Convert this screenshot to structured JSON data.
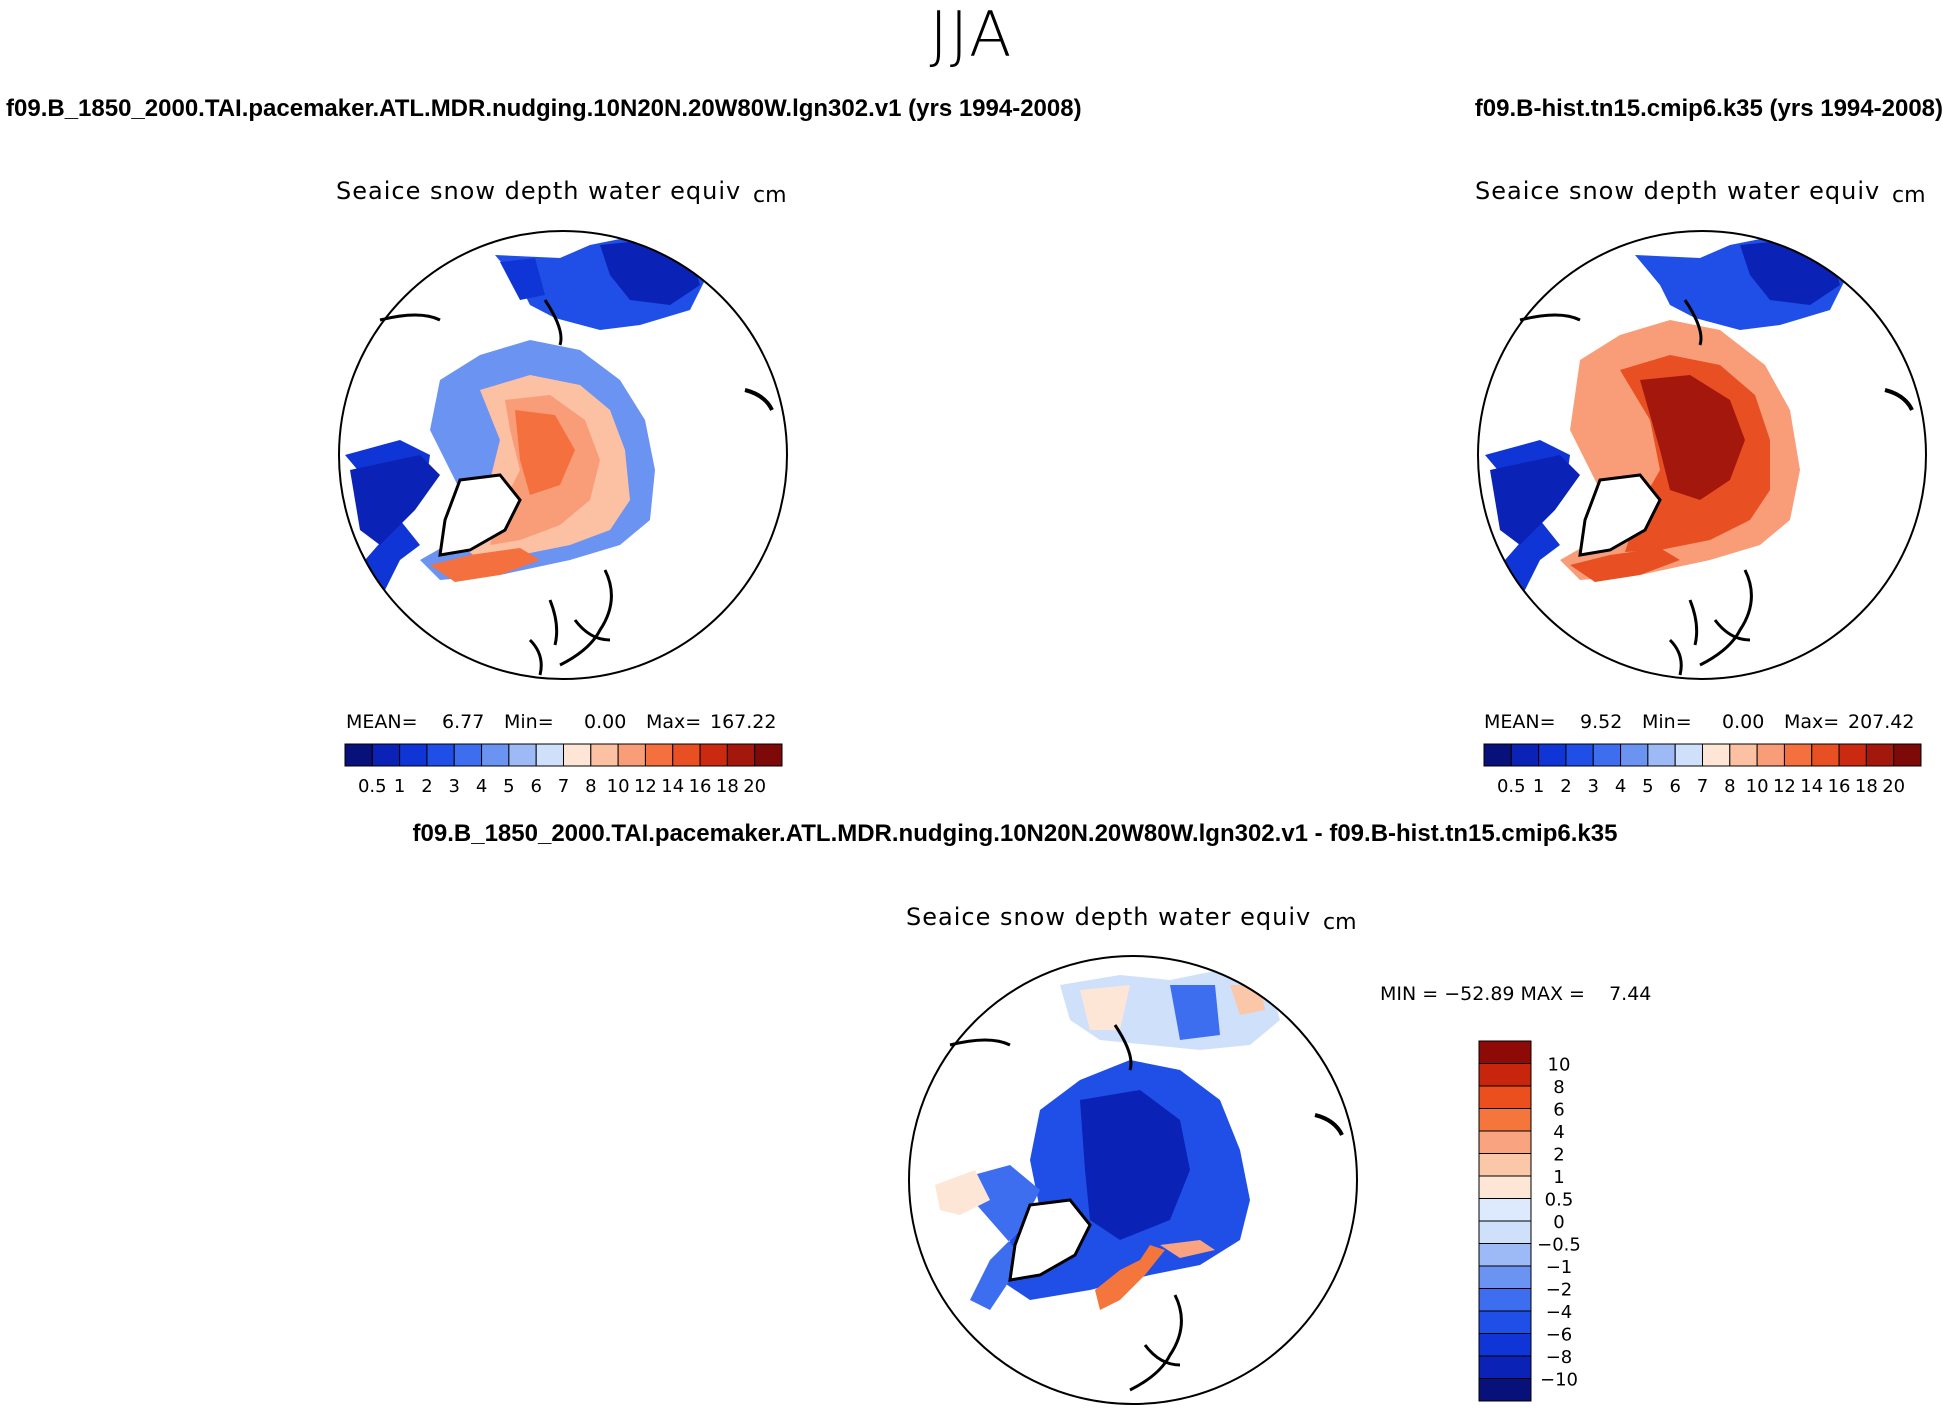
{
  "season": "JJA",
  "colors": {
    "pos_scale": [
      "#08107a",
      "#0a22b5",
      "#1035d6",
      "#1f4fe6",
      "#3e6ef0",
      "#6a93f2",
      "#9db9f6",
      "#cfe0fb",
      "#fde6d6",
      "#fcc0a2",
      "#f99d78",
      "#f5703f",
      "#e84f22",
      "#cb2a10",
      "#a3170d",
      "#7d0a08"
    ],
    "diff_scale": [
      "#08107a",
      "#0a22b5",
      "#1035d6",
      "#1f4fe6",
      "#3e6ef0",
      "#6a93f2",
      "#9db9f6",
      "#cfe0fb",
      "#dde9fc",
      "#fde6d6",
      "#fbc7a9",
      "#f9a380",
      "#f5763d",
      "#ea4f1d",
      "#c8260c",
      "#8e0a06"
    ]
  },
  "panels": {
    "left": {
      "run_title": "f09.B_1850_2000.TAI.pacemaker.ATL.MDR.nudging.10N20N.20W80W.lgn302.v1 (yrs 1994-2008)",
      "variable": "Seaice snow depth water equiv",
      "unit": "cm",
      "mean_label": "MEAN=",
      "mean_value": "6.77",
      "min_label": "Min=",
      "min_value": "0.00",
      "max_label": "Max=",
      "max_value": "167.22",
      "colorbar_ticks": [
        "0.5",
        "1",
        "2",
        "3",
        "4",
        "5",
        "6",
        "7",
        "8",
        "10",
        "12",
        "14",
        "16",
        "18",
        "20"
      ]
    },
    "right": {
      "run_title": "f09.B-hist.tn15.cmip6.k35 (yrs 1994-2008)",
      "variable": "Seaice snow depth water equiv",
      "unit": "cm",
      "mean_label": "MEAN=",
      "mean_value": "9.52",
      "min_label": "Min=",
      "min_value": "0.00",
      "max_label": "Max=",
      "max_value": "207.42",
      "colorbar_ticks": [
        "0.5",
        "1",
        "2",
        "3",
        "4",
        "5",
        "6",
        "7",
        "8",
        "10",
        "12",
        "14",
        "16",
        "18",
        "20"
      ]
    },
    "diff": {
      "run_title": "f09.B_1850_2000.TAI.pacemaker.ATL.MDR.nudging.10N20N.20W80W.lgn302.v1 - f09.B-hist.tn15.cmip6.k35",
      "variable": "Seaice snow depth water equiv",
      "unit": "cm",
      "minmax_text": "MIN = −52.89 MAX =    7.44",
      "colorbar_ticks": [
        "10",
        "8",
        "6",
        "4",
        "2",
        "1",
        "0.5",
        "0",
        "−0.5",
        "−1",
        "−2",
        "−4",
        "−6",
        "−8",
        "−10"
      ]
    }
  }
}
